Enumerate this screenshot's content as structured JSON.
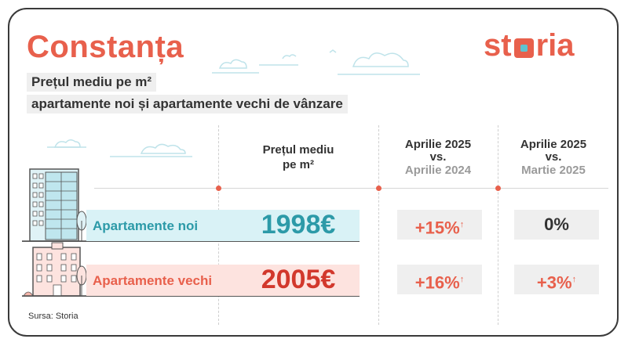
{
  "header": {
    "city": "Constanța",
    "logo_text": [
      "st",
      "r",
      "ia"
    ],
    "subtitle_line1": "Prețul mediu pe m²",
    "subtitle_line2": "apartamente noi și apartamente vechi de vânzare"
  },
  "columns": {
    "price": {
      "line1": "Prețul mediu",
      "line2": "pe m²"
    },
    "yoy": {
      "line1": "Aprilie 2025",
      "line2": "vs.",
      "line3": "Aprilie 2024"
    },
    "mom": {
      "line1": "Aprilie 2025",
      "line2": "vs.",
      "line3": "Martie 2025"
    }
  },
  "rows": [
    {
      "label": "Apartamente noi",
      "price": "1998€",
      "yoy": "+15%",
      "yoy_arrow": "↑",
      "mom": "0%",
      "mom_arrow": ""
    },
    {
      "label": "Apartamente vechi",
      "price": "2005€",
      "yoy": "+16%",
      "yoy_arrow": "↑",
      "mom": "+3%",
      "mom_arrow": "↑"
    }
  ],
  "source": "Sursa: Storia",
  "colors": {
    "accent": "#e8604c",
    "teal": "#2c9aa8",
    "teal_band": "#d9f2f6",
    "red_band": "#fde3df",
    "dark_red": "#d2382c",
    "gray_box": "#efefef"
  },
  "icons": [
    "cloud-icon",
    "apartment-building-new-icon",
    "apartment-building-old-icon",
    "tree-icon",
    "arrow-up-icon"
  ]
}
